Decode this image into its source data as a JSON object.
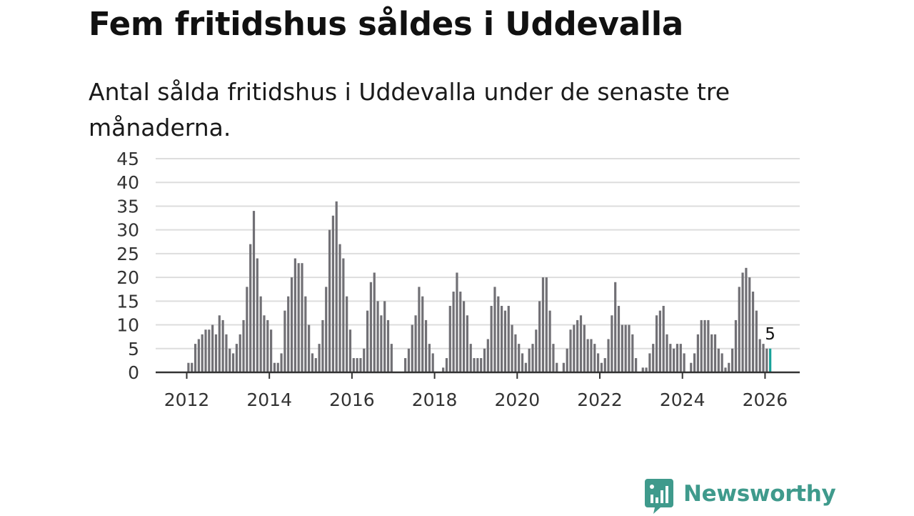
{
  "header": {
    "title": "Fem fritidshus såldes i Uddevalla",
    "subtitle": "Antal sålda fritidshus i Uddevalla under de senaste tre månaderna."
  },
  "branding": {
    "name": "Newsworthy",
    "color": "#3f9a8c",
    "icon": "newsworthy-logo-icon"
  },
  "colors": {
    "bar": "#717075",
    "highlight": "#1aa39a",
    "grid": "#dddddd",
    "axis": "#333333"
  },
  "chart_data": {
    "type": "bar",
    "title": "Fem fritidshus såldes i Uddevalla",
    "xlabel": "",
    "ylabel": "",
    "ylim": [
      0,
      45
    ],
    "yticks": [
      0,
      5,
      10,
      15,
      20,
      25,
      30,
      35,
      40,
      45
    ],
    "xtick_labels": [
      "2012",
      "2014",
      "2016",
      "2018",
      "2020",
      "2022",
      "2024",
      "2026"
    ],
    "grid": true,
    "start_year": 2012,
    "start_month": 1,
    "highlight": {
      "index": 169,
      "value": 5,
      "label": "5"
    },
    "values": [
      2,
      2,
      6,
      7,
      8,
      9,
      9,
      10,
      8,
      12,
      11,
      8,
      5,
      4,
      6,
      8,
      11,
      18,
      27,
      34,
      24,
      16,
      12,
      11,
      9,
      2,
      2,
      4,
      13,
      16,
      20,
      24,
      23,
      23,
      16,
      10,
      4,
      3,
      6,
      11,
      18,
      30,
      33,
      36,
      27,
      24,
      16,
      9,
      3,
      3,
      3,
      5,
      13,
      19,
      21,
      15,
      12,
      15,
      11,
      6,
      0,
      0,
      0,
      3,
      5,
      10,
      12,
      18,
      16,
      11,
      6,
      4,
      0,
      0,
      1,
      3,
      14,
      17,
      21,
      17,
      15,
      12,
      6,
      3,
      3,
      3,
      5,
      7,
      14,
      18,
      16,
      14,
      13,
      14,
      10,
      8,
      6,
      4,
      2,
      5,
      6,
      9,
      15,
      20,
      20,
      13,
      6,
      2,
      0,
      2,
      5,
      9,
      10,
      11,
      12,
      10,
      7,
      7,
      6,
      4,
      2,
      3,
      7,
      12,
      19,
      14,
      10,
      10,
      10,
      8,
      3,
      0,
      1,
      1,
      4,
      6,
      12,
      13,
      14,
      8,
      6,
      5,
      6,
      6,
      4,
      0,
      2,
      4,
      8,
      11,
      11,
      11,
      8,
      8,
      5,
      4,
      1,
      2,
      5,
      11,
      18,
      21,
      22,
      20,
      17,
      13,
      7,
      6,
      5,
      5
    ]
  }
}
